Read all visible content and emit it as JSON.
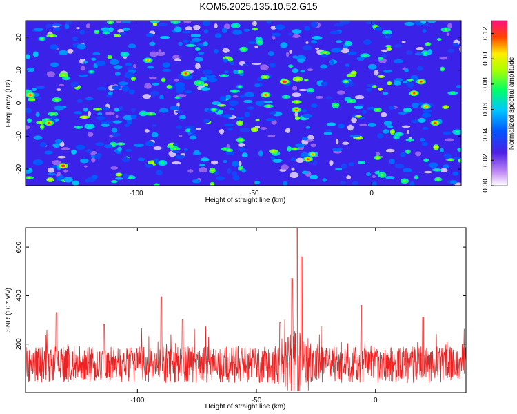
{
  "title": "KOM5.2025.135.10.52.G15",
  "colors": {
    "snr_line": "#ee2222",
    "frame": "#000000"
  },
  "chart_data": [
    {
      "type": "heatmap",
      "xlabel": "Height of straight line (km)",
      "ylabel": "Frequency (Hz)",
      "xlim": [
        -147,
        38
      ],
      "ylim": [
        -25,
        25
      ],
      "x_ticks": [
        -100,
        -50,
        0
      ],
      "x_tick_labels": [
        "-100",
        "-50",
        "0"
      ],
      "y_ticks": [
        -20,
        -10,
        0,
        10,
        20
      ],
      "y_tick_labels": [
        "-20",
        "-10",
        "0",
        "10",
        "20"
      ],
      "colorbar": {
        "label": "Normalized spectral amplitude",
        "range": [
          0.0,
          0.13
        ],
        "ticks": [
          0.0,
          0.02,
          0.04,
          0.06,
          0.08,
          0.1,
          0.12
        ],
        "tick_labels": [
          "0.00",
          "0.02",
          "0.04",
          "0.06",
          "0.08",
          "0.10",
          "0.12"
        ]
      },
      "hot_spots": [
        {
          "x": -145,
          "y": 2.5,
          "v": 0.12
        },
        {
          "x": -140,
          "y": 19.5,
          "v": 0.09
        },
        {
          "x": -137,
          "y": -6,
          "v": 0.12
        },
        {
          "x": -131,
          "y": -19,
          "v": 0.13
        },
        {
          "x": -119,
          "y": 9.5,
          "v": 0.08
        },
        {
          "x": -95,
          "y": 13,
          "v": 0.11
        },
        {
          "x": -79,
          "y": 9,
          "v": 0.12
        },
        {
          "x": -67,
          "y": -2,
          "v": 0.09
        },
        {
          "x": -56,
          "y": 5,
          "v": 0.08
        },
        {
          "x": -45,
          "y": 2.5,
          "v": 0.12
        },
        {
          "x": -37,
          "y": 6.5,
          "v": 0.13
        },
        {
          "x": -32,
          "y": -2,
          "v": 0.12
        },
        {
          "x": -27,
          "y": -17,
          "v": 0.12
        },
        {
          "x": -25,
          "y": -15.5,
          "v": 0.11
        },
        {
          "x": -11,
          "y": 6.5,
          "v": 0.09
        },
        {
          "x": 18,
          "y": 3,
          "v": 0.12
        },
        {
          "x": 21,
          "y": 6.5,
          "v": 0.12
        },
        {
          "x": 23,
          "y": -1,
          "v": 0.11
        },
        {
          "x": 27,
          "y": -6,
          "v": 0.12
        }
      ]
    },
    {
      "type": "line",
      "xlabel": "Height of straight line (km)",
      "ylabel": "SNR (10 * v/v)",
      "xlim": [
        -147,
        38
      ],
      "ylim": [
        0,
        680
      ],
      "x_ticks": [
        -100,
        -50,
        0
      ],
      "x_tick_labels": [
        "-100",
        "-50",
        "0"
      ],
      "y_ticks": [
        200,
        400,
        600
      ],
      "y_tick_labels": [
        "200",
        "400",
        "600"
      ],
      "baseline_mean": 115,
      "peaks": [
        {
          "x": -134,
          "y": 330
        },
        {
          "x": -114,
          "y": 280
        },
        {
          "x": -90,
          "y": 395
        },
        {
          "x": -81,
          "y": 300
        },
        {
          "x": -40,
          "y": 290
        },
        {
          "x": -35,
          "y": 470
        },
        {
          "x": -33,
          "y": 680
        },
        {
          "x": -31,
          "y": 560
        },
        {
          "x": -6,
          "y": 360
        },
        {
          "x": 20,
          "y": 310
        }
      ]
    }
  ]
}
